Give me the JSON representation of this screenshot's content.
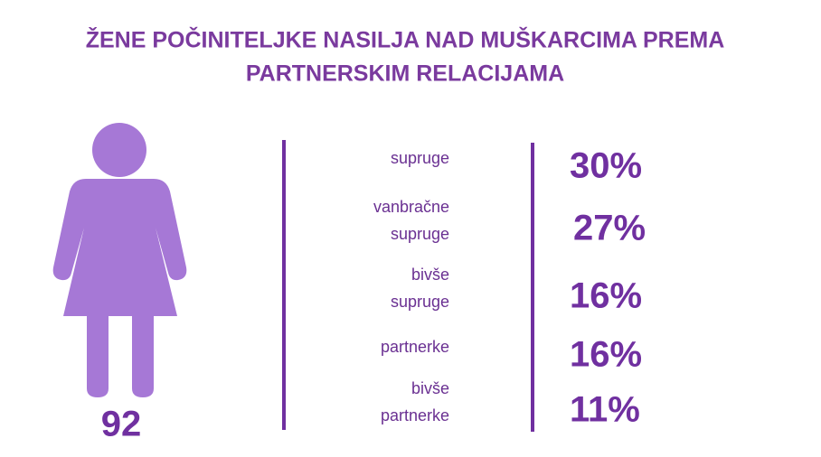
{
  "header": {
    "title_lines": [
      "ŽENE POČINITELJKE NASILJA NAD MUŠKARCIMA PREMA",
      "PARTNERSKIM RELACIJAMA"
    ]
  },
  "figure": {
    "count": "92"
  },
  "rows": [
    {
      "label_lines": [
        "supruge"
      ],
      "value": "30%"
    },
    {
      "label_lines": [
        "vanbračne",
        "supruge"
      ],
      "value": "27%"
    },
    {
      "label_lines": [
        "bivše",
        "supruge"
      ],
      "value": "16%"
    },
    {
      "label_lines": [
        "partnerke"
      ],
      "value": "16%"
    },
    {
      "label_lines": [
        "bivše",
        "partnerke"
      ],
      "value": "11%"
    }
  ]
}
